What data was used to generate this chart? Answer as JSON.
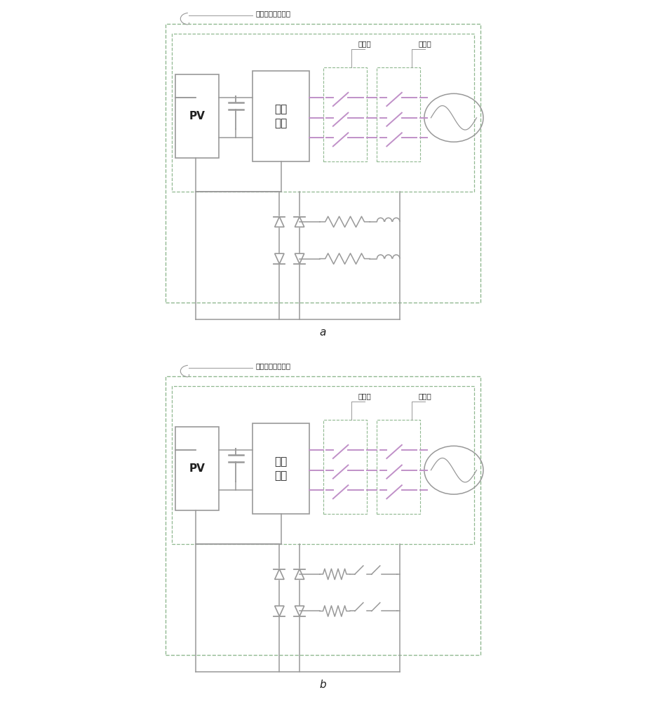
{
  "bg_color": "#ffffff",
  "line_color": "#999999",
  "purple_line": "#c090c8",
  "dashed_color": "#90b890",
  "text_color": "#202020",
  "title_text": "典型的逆变器系统",
  "group1_text": "第一组",
  "group2_text": "第二组",
  "pv_text": "PV",
  "inv_text": "逆变\n单元",
  "label_a": "a",
  "label_b": "b",
  "figsize": [
    9.21,
    10.0
  ],
  "dpi": 100
}
